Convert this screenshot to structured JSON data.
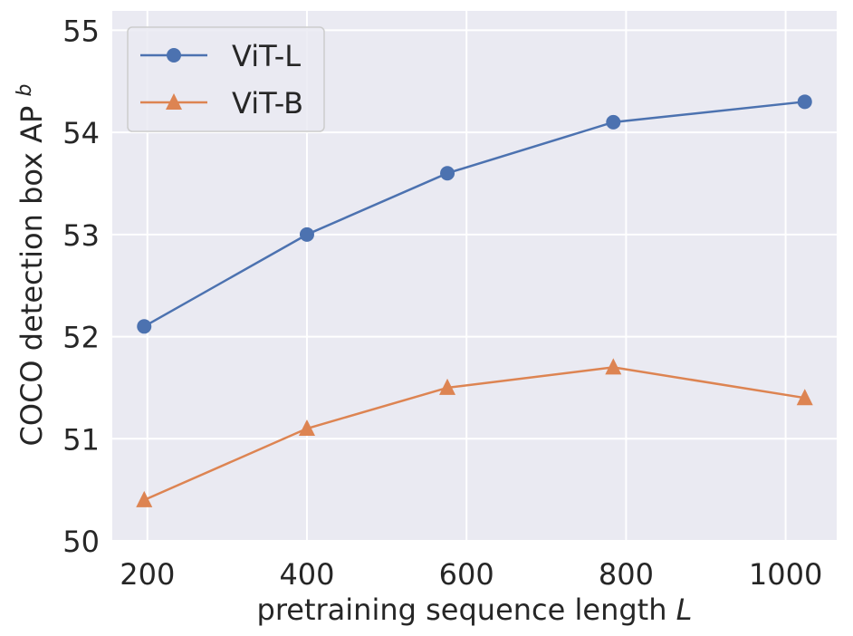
{
  "chart_data": {
    "type": "line",
    "title": "",
    "xlabel": "pretraining sequence length",
    "xlabel_italic_suffix": "L",
    "ylabel": "COCO detection box AP",
    "ylabel_superscript": "b",
    "xlim": [
      156,
      1064
    ],
    "ylim": [
      50,
      55.19
    ],
    "xticks": [
      200,
      400,
      600,
      800,
      1000
    ],
    "xtick_labels": [
      "200",
      "400",
      "600",
      "800",
      "1000"
    ],
    "yticks": [
      50,
      51,
      52,
      53,
      54,
      55
    ],
    "ytick_labels": [
      "50",
      "51",
      "52",
      "53",
      "54",
      "55"
    ],
    "grid": true,
    "legend_position": "top-left",
    "x": [
      196,
      400,
      576,
      784,
      1024
    ],
    "series": [
      {
        "name": "ViT-L",
        "marker": "circle",
        "color": "#4c72b0",
        "values": [
          52.1,
          53.0,
          53.6,
          54.1,
          54.3
        ]
      },
      {
        "name": "ViT-B",
        "marker": "triangle",
        "color": "#dd8452",
        "values": [
          50.4,
          51.1,
          51.5,
          51.7,
          51.4
        ]
      }
    ]
  }
}
